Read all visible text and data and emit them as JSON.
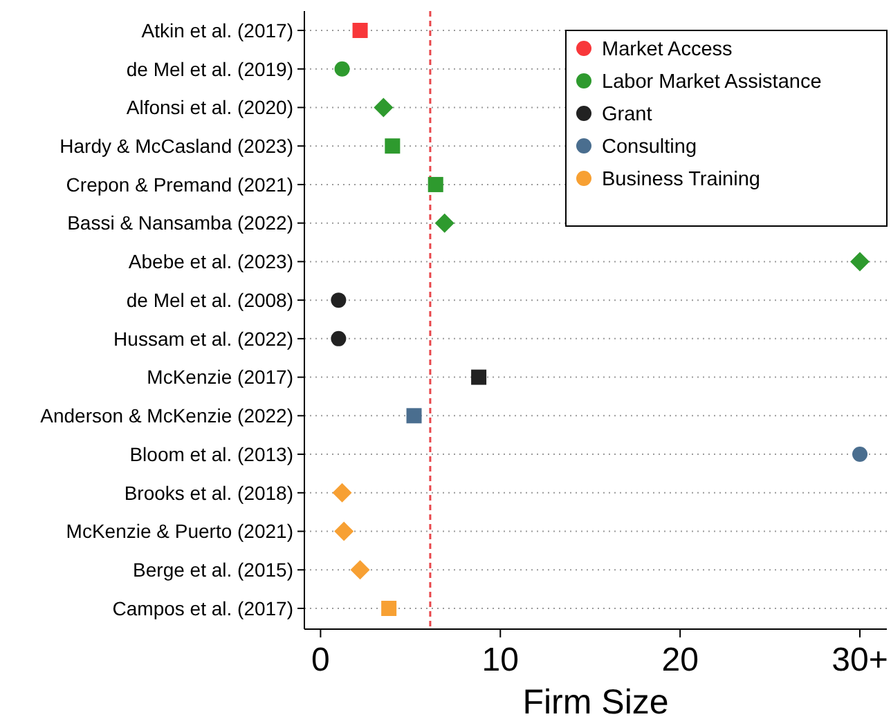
{
  "chart_data": {
    "type": "scatter",
    "orientation": "horizontal",
    "xlabel": "Firm Size",
    "categories": [
      "Atkin et al. (2017)",
      "de Mel et al. (2019)",
      "Alfonsi et al. (2020)",
      "Hardy & McCasland (2023)",
      "Crepon & Premand (2021)",
      "Bassi & Nansamba (2022)",
      "Abebe et al. (2023)",
      "de Mel et al. (2008)",
      "Hussam et al. (2022)",
      "McKenzie (2017)",
      "Anderson & McKenzie (2022)",
      "Bloom et al. (2013)",
      "Brooks et al. (2018)",
      "McKenzie & Puerto (2021)",
      "Berge et al. (2015)",
      "Campos et al. (2017)"
    ],
    "series": [
      {
        "name": "Market Access",
        "color": "#f8373a",
        "marker": "square",
        "values": [
          2.2,
          null,
          null,
          null,
          null,
          null,
          null,
          null,
          null,
          null,
          null,
          null,
          null,
          null,
          null,
          null
        ]
      },
      {
        "name": "Labor Market Assistance",
        "color": "#2e9a2e",
        "marker": "circle",
        "values": [
          null,
          1.2,
          null,
          null,
          null,
          null,
          null,
          null,
          null,
          null,
          null,
          null,
          null,
          null,
          null,
          null
        ]
      },
      {
        "color": "#2e9a2e",
        "marker": "diamond",
        "values": [
          null,
          null,
          3.5,
          null,
          null,
          6.9,
          30,
          null,
          null,
          null,
          null,
          null,
          null,
          null,
          null,
          null
        ]
      },
      {
        "color": "#2e9a2e",
        "marker": "square",
        "values": [
          null,
          null,
          null,
          4.0,
          6.4,
          null,
          null,
          null,
          null,
          null,
          null,
          null,
          null,
          null,
          null,
          null
        ]
      },
      {
        "name": "Grant",
        "color": "#222222",
        "marker": "circle",
        "values": [
          null,
          null,
          null,
          null,
          null,
          null,
          null,
          1.0,
          1.0,
          null,
          null,
          null,
          null,
          null,
          null,
          null
        ]
      },
      {
        "color": "#222222",
        "marker": "square",
        "values": [
          null,
          null,
          null,
          null,
          null,
          null,
          null,
          null,
          null,
          8.8,
          null,
          null,
          null,
          null,
          null,
          null
        ]
      },
      {
        "name": "Consulting",
        "color": "#4a6e8f",
        "marker": "circle",
        "values": [
          null,
          null,
          null,
          null,
          null,
          null,
          null,
          null,
          null,
          null,
          null,
          30,
          null,
          null,
          null,
          null
        ]
      },
      {
        "color": "#4a6e8f",
        "marker": "square",
        "values": [
          null,
          null,
          null,
          null,
          null,
          null,
          null,
          null,
          null,
          null,
          5.2,
          null,
          null,
          null,
          null,
          null
        ]
      },
      {
        "name": "Business Training",
        "color": "#f7a033",
        "marker": "diamond",
        "values": [
          null,
          null,
          null,
          null,
          null,
          null,
          null,
          null,
          null,
          null,
          null,
          null,
          1.2,
          1.3,
          2.2,
          null
        ]
      },
      {
        "color": "#f7a033",
        "marker": "square",
        "values": [
          null,
          null,
          null,
          null,
          null,
          null,
          null,
          null,
          null,
          null,
          null,
          null,
          null,
          null,
          null,
          3.8
        ]
      }
    ],
    "xlim": [
      -0.9,
      31.5
    ],
    "xticks": [
      0,
      10,
      20,
      {
        "value": 30,
        "label": "30+"
      }
    ],
    "ref_lines": [
      {
        "axis": "x",
        "value": 6.1,
        "color": "#e8474b",
        "line_style": "dashed"
      }
    ],
    "grid": "y",
    "legend": "top right"
  }
}
